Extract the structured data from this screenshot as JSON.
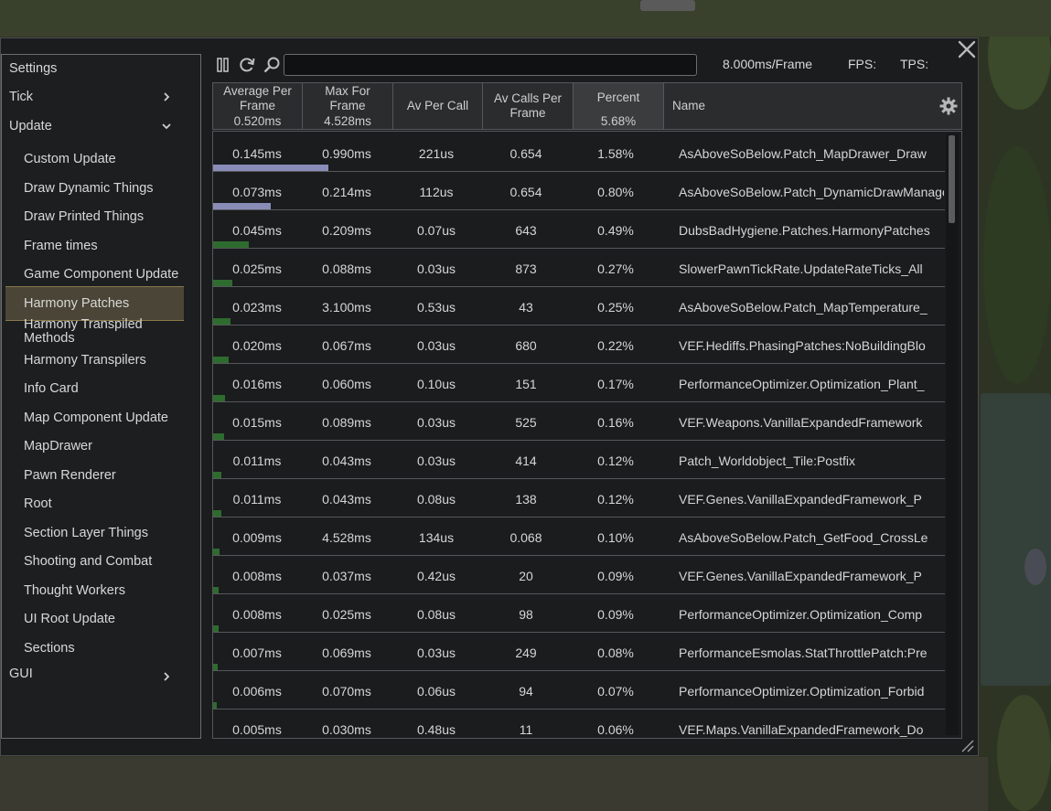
{
  "toolbar": {
    "frame_budget": "8.000ms/Frame",
    "fps_label": "FPS:",
    "tps_label": "TPS:",
    "search_value": "",
    "search_placeholder": ""
  },
  "sidebar": {
    "categories": [
      {
        "label": "Settings"
      },
      {
        "label": "Tick"
      },
      {
        "label": "Update"
      },
      {
        "label": "GUI"
      }
    ],
    "update_items": [
      {
        "label": "Custom Update"
      },
      {
        "label": "Draw Dynamic Things"
      },
      {
        "label": "Draw Printed Things"
      },
      {
        "label": "Frame times"
      },
      {
        "label": "Game Component Update"
      },
      {
        "label": "Harmony Patches"
      },
      {
        "label": "Harmony Transpiled Methods"
      },
      {
        "label": "Harmony Transpilers"
      },
      {
        "label": "Info Card"
      },
      {
        "label": "Map Component Update"
      },
      {
        "label": "MapDrawer"
      },
      {
        "label": "Pawn Renderer"
      },
      {
        "label": "Root"
      },
      {
        "label": "Section Layer Things"
      },
      {
        "label": "Shooting and Combat"
      },
      {
        "label": "Thought Workers"
      },
      {
        "label": "UI Root Update"
      },
      {
        "label": "Sections"
      }
    ],
    "selected": "Harmony Patches"
  },
  "table": {
    "columns": [
      {
        "label": "Average Per Frame",
        "line1": "Average Per",
        "line2": "Frame",
        "summary": "0.520ms"
      },
      {
        "label": "Max For Frame",
        "line1": "Max For",
        "line2": "Frame",
        "summary": "4.528ms"
      },
      {
        "label": "Av Per Call",
        "line1": "Av Per Call"
      },
      {
        "label": "Av Calls Per Frame",
        "line1": "Av Calls Per",
        "line2": "Frame"
      },
      {
        "label": "Percent",
        "line1": "Percent",
        "summary": "5.68%"
      },
      {
        "label": "Name",
        "line1": "Name"
      }
    ],
    "sort_column": "Percent",
    "rows": [
      {
        "avg": "0.145ms",
        "max": "0.990ms",
        "per_call": "221us",
        "calls": "0.654",
        "percent": "1.58%",
        "name": "AsAboveSoBelow.Patch_MapDrawer_Draw",
        "bar": 0.126,
        "bar_color": "#8a8cb8"
      },
      {
        "avg": "0.073ms",
        "max": "0.214ms",
        "per_call": "112us",
        "calls": "0.654",
        "percent": "0.80%",
        "name": "AsAboveSoBelow.Patch_DynamicDrawManager",
        "bar": 0.063,
        "bar_color": "#8a8cb8"
      },
      {
        "avg": "0.045ms",
        "max": "0.209ms",
        "per_call": "0.07us",
        "calls": "643",
        "percent": "0.49%",
        "name": "DubsBadHygiene.Patches.HarmonyPatches",
        "bar": 0.039,
        "bar_color": "#2e6b2e"
      },
      {
        "avg": "0.025ms",
        "max": "0.088ms",
        "per_call": "0.03us",
        "calls": "873",
        "percent": "0.27%",
        "name": "SlowerPawnTickRate.UpdateRateTicks_All",
        "bar": 0.021,
        "bar_color": "#2e6b2e"
      },
      {
        "avg": "0.023ms",
        "max": "3.100ms",
        "per_call": "0.53us",
        "calls": "43",
        "percent": "0.25%",
        "name": "AsAboveSoBelow.Patch_MapTemperature_",
        "bar": 0.019,
        "bar_color": "#2e6b2e"
      },
      {
        "avg": "0.020ms",
        "max": "0.067ms",
        "per_call": "0.03us",
        "calls": "680",
        "percent": "0.22%",
        "name": "VEF.Hediffs.PhasingPatches:NoBuildingBlo",
        "bar": 0.017,
        "bar_color": "#2e6b2e"
      },
      {
        "avg": "0.016ms",
        "max": "0.060ms",
        "per_call": "0.10us",
        "calls": "151",
        "percent": "0.17%",
        "name": "PerformanceOptimizer.Optimization_Plant_",
        "bar": 0.013,
        "bar_color": "#2e6b2e"
      },
      {
        "avg": "0.015ms",
        "max": "0.089ms",
        "per_call": "0.03us",
        "calls": "525",
        "percent": "0.16%",
        "name": "VEF.Weapons.VanillaExpandedFramework",
        "bar": 0.012,
        "bar_color": "#2e6b2e"
      },
      {
        "avg": "0.011ms",
        "max": "0.043ms",
        "per_call": "0.03us",
        "calls": "414",
        "percent": "0.12%",
        "name": "Patch_Worldobject_Tile:Postfix",
        "bar": 0.009,
        "bar_color": "#2e6b2e"
      },
      {
        "avg": "0.011ms",
        "max": "0.043ms",
        "per_call": "0.08us",
        "calls": "138",
        "percent": "0.12%",
        "name": "VEF.Genes.VanillaExpandedFramework_P",
        "bar": 0.009,
        "bar_color": "#2e6b2e"
      },
      {
        "avg": "0.009ms",
        "max": "4.528ms",
        "per_call": "134us",
        "calls": "0.068",
        "percent": "0.10%",
        "name": "AsAboveSoBelow.Patch_GetFood_CrossLe",
        "bar": 0.007,
        "bar_color": "#2e6b2e"
      },
      {
        "avg": "0.008ms",
        "max": "0.037ms",
        "per_call": "0.42us",
        "calls": "20",
        "percent": "0.09%",
        "name": "VEF.Genes.VanillaExpandedFramework_P",
        "bar": 0.006,
        "bar_color": "#2e6b2e"
      },
      {
        "avg": "0.008ms",
        "max": "0.025ms",
        "per_call": "0.08us",
        "calls": "98",
        "percent": "0.09%",
        "name": "PerformanceOptimizer.Optimization_Comp",
        "bar": 0.006,
        "bar_color": "#2e6b2e"
      },
      {
        "avg": "0.007ms",
        "max": "0.069ms",
        "per_call": "0.03us",
        "calls": "249",
        "percent": "0.08%",
        "name": "PerformanceEsmolas.StatThrottlePatch:Pre",
        "bar": 0.005,
        "bar_color": "#2e6b2e"
      },
      {
        "avg": "0.006ms",
        "max": "0.070ms",
        "per_call": "0.06us",
        "calls": "94",
        "percent": "0.07%",
        "name": "PerformanceOptimizer.Optimization_Forbid",
        "bar": 0.004,
        "bar_color": "#2e6b2e"
      },
      {
        "avg": "0.005ms",
        "max": "0.030ms",
        "per_call": "0.48us",
        "calls": "11",
        "percent": "0.06%",
        "name": "VEF.Maps.VanillaExpandedFramework_Do",
        "bar": 0.004,
        "bar_color": "#2e6b2e"
      }
    ]
  },
  "icons": {
    "pause": "pause-icon",
    "refresh": "refresh-icon",
    "search": "magnifier-icon",
    "settings": "gear-icon",
    "close": "close-icon",
    "resize": "resize-grip-icon"
  }
}
